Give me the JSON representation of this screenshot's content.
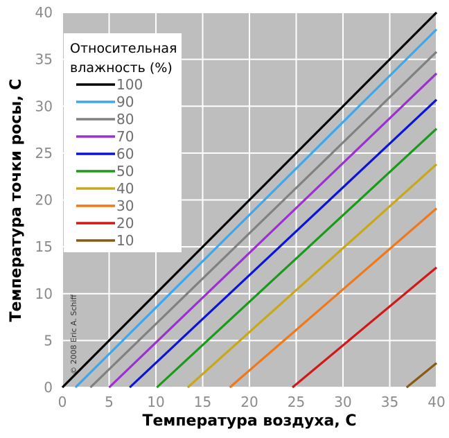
{
  "chart_data": {
    "type": "line",
    "xlabel": "Температура воздуха, С",
    "ylabel": "Температура точки росы, С",
    "xlim": [
      0,
      40
    ],
    "ylim": [
      0,
      40
    ],
    "x_ticks": [
      "0",
      "5",
      "10",
      "15",
      "20",
      "25",
      "30",
      "35",
      "40"
    ],
    "y_ticks": [
      "0",
      "5",
      "10",
      "15",
      "20",
      "25",
      "30",
      "35",
      "40"
    ],
    "grid": true,
    "legend": {
      "title_line1": "Относительная",
      "title_line2": "влажность (%)",
      "placement": "top-left"
    },
    "copyright": "© 2008 Eric A. Schiff",
    "series": [
      {
        "name": "100",
        "color": "#000000",
        "x": [
          0,
          40
        ],
        "y": [
          0,
          40
        ]
      },
      {
        "name": "90",
        "color": "#3aa8f0",
        "x": [
          1.4,
          40
        ],
        "y": [
          0,
          38.2
        ]
      },
      {
        "name": "80",
        "color": "#808080",
        "x": [
          3.0,
          40
        ],
        "y": [
          0,
          35.8
        ]
      },
      {
        "name": "70",
        "color": "#9b30d0",
        "x": [
          5.0,
          40
        ],
        "y": [
          0,
          33.5
        ]
      },
      {
        "name": "60",
        "color": "#0a14d8",
        "x": [
          7.2,
          40
        ],
        "y": [
          0,
          30.7
        ]
      },
      {
        "name": "50",
        "color": "#1a9a1a",
        "x": [
          10.1,
          40
        ],
        "y": [
          0,
          27.6
        ]
      },
      {
        "name": "40",
        "color": "#c8a818",
        "x": [
          13.4,
          40
        ],
        "y": [
          0,
          23.8
        ]
      },
      {
        "name": "30",
        "color": "#f07818",
        "x": [
          17.9,
          40
        ],
        "y": [
          0,
          19.1
        ]
      },
      {
        "name": "20",
        "color": "#d01818",
        "x": [
          24.6,
          40
        ],
        "y": [
          0,
          12.8
        ]
      },
      {
        "name": "10",
        "color": "#8a5a10",
        "x": [
          36.8,
          40
        ],
        "y": [
          0,
          2.6
        ]
      }
    ]
  }
}
